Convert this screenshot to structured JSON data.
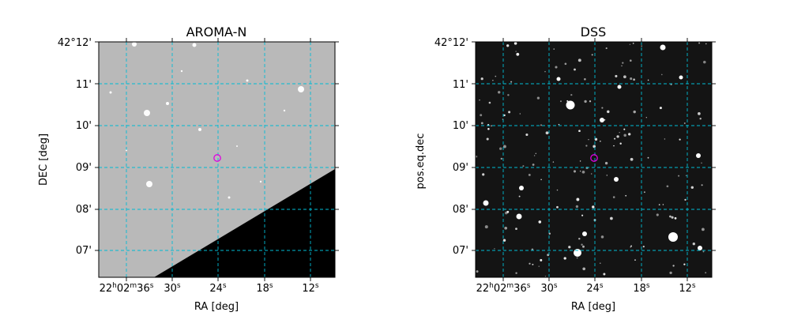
{
  "panels": [
    {
      "title": "AROMA-N",
      "xlabel": "RA [deg]",
      "ylabel": "DEC [deg]",
      "image_style": "gray-sky-with-black-masked-region",
      "x_ticks": [
        "22h02m36s",
        "30s",
        "24s",
        "18s",
        "12s"
      ],
      "y_ticks": [
        "42°12'",
        "11'",
        "10'",
        "09'",
        "08'",
        "07'"
      ]
    },
    {
      "title": "DSS",
      "xlabel": "RA [deg]",
      "ylabel": "pos.eq.dec",
      "image_style": "dark-sky-star-field",
      "x_ticks": [
        "22h02m36s",
        "30s",
        "24s",
        "18s",
        "12s"
      ],
      "y_ticks": [
        "42°12'",
        "11'",
        "10'",
        "09'",
        "08'",
        "07'"
      ]
    }
  ],
  "colors": {
    "grid": "#00bcd4",
    "marker": "#e000e0",
    "aroma_background": "#b9b9b9",
    "dss_background": "#141414"
  },
  "marker_icon": "target-circle-icon"
}
